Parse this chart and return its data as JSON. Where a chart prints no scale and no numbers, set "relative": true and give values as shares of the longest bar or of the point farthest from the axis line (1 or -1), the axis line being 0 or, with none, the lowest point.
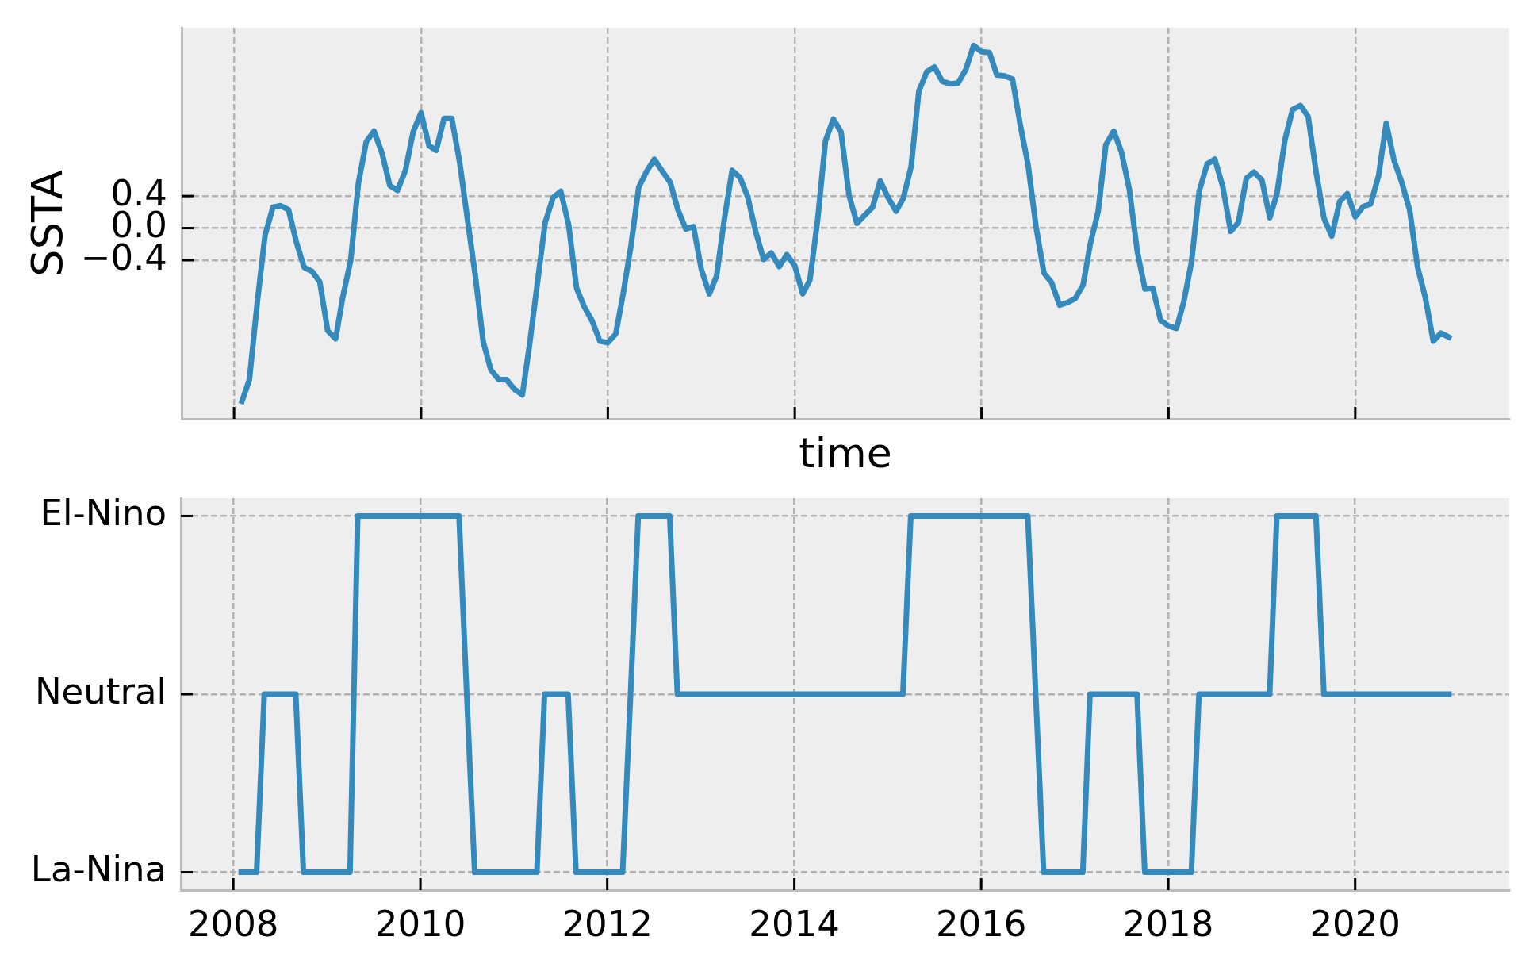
{
  "chart_data": [
    {
      "type": "line",
      "xlabel": "time",
      "ylabel": "SSTA",
      "color": "#348abd",
      "grid": true,
      "tick_labels": "y",
      "xlim": [
        "2007-06-10",
        "2021-08-25"
      ],
      "xticks": [
        "2008",
        "2010",
        "2012",
        "2014",
        "2016",
        "2018",
        "2020"
      ],
      "ylim": [
        -2.38,
        2.5
      ],
      "yticks": [
        0.4,
        {
          "value": 0,
          "label": "0.0"
        },
        {
          "value": -0.4,
          "label": "−0.4"
        }
      ],
      "x": [
        "2008-02",
        "2008-03",
        "2008-04",
        "2008-05",
        "2008-06",
        "2008-07",
        "2008-08",
        "2008-09",
        "2008-10",
        "2008-11",
        "2008-12",
        "2009-01",
        "2009-02",
        "2009-03",
        "2009-04",
        "2009-05",
        "2009-06",
        "2009-07",
        "2009-08",
        "2009-09",
        "2009-10",
        "2009-11",
        "2009-12",
        "2010-01",
        "2010-02",
        "2010-03",
        "2010-04",
        "2010-05",
        "2010-06",
        "2010-07",
        "2010-08",
        "2010-09",
        "2010-10",
        "2010-11",
        "2010-12",
        "2011-01",
        "2011-02",
        "2011-03",
        "2011-04",
        "2011-05",
        "2011-06",
        "2011-07",
        "2011-08",
        "2011-09",
        "2011-10",
        "2011-11",
        "2011-12",
        "2012-01",
        "2012-02",
        "2012-03",
        "2012-04",
        "2012-05",
        "2012-06",
        "2012-07",
        "2012-08",
        "2012-09",
        "2012-10",
        "2012-11",
        "2012-12",
        "2013-01",
        "2013-02",
        "2013-03",
        "2013-04",
        "2013-05",
        "2013-06",
        "2013-07",
        "2013-08",
        "2013-09",
        "2013-10",
        "2013-11",
        "2013-12",
        "2014-01",
        "2014-02",
        "2014-03",
        "2014-04",
        "2014-05",
        "2014-06",
        "2014-07",
        "2014-08",
        "2014-09",
        "2014-10",
        "2014-11",
        "2014-12",
        "2015-01",
        "2015-02",
        "2015-03",
        "2015-04",
        "2015-05",
        "2015-06",
        "2015-07",
        "2015-08",
        "2015-09",
        "2015-10",
        "2015-11",
        "2015-12",
        "2016-01",
        "2016-02",
        "2016-03",
        "2016-04",
        "2016-05",
        "2016-06",
        "2016-07",
        "2016-08",
        "2016-09",
        "2016-10",
        "2016-11",
        "2016-12",
        "2017-01",
        "2017-02",
        "2017-03",
        "2017-04",
        "2017-05",
        "2017-06",
        "2017-07",
        "2017-08",
        "2017-09",
        "2017-10",
        "2017-11",
        "2017-12",
        "2018-01",
        "2018-02",
        "2018-03",
        "2018-04",
        "2018-05",
        "2018-06",
        "2018-07",
        "2018-08",
        "2018-09",
        "2018-10",
        "2018-11",
        "2018-12",
        "2019-01",
        "2019-02",
        "2019-03",
        "2019-04",
        "2019-05",
        "2019-06",
        "2019-07",
        "2019-08",
        "2019-09",
        "2019-10",
        "2019-11",
        "2019-12",
        "2020-01",
        "2020-02",
        "2020-03",
        "2020-04",
        "2020-05",
        "2020-06",
        "2020-07",
        "2020-08",
        "2020-09",
        "2020-10",
        "2020-11",
        "2020-12",
        "2021-01"
      ],
      "values": [
        -2.16,
        -1.89,
        -0.92,
        -0.09,
        0.26,
        0.28,
        0.23,
        -0.18,
        -0.49,
        -0.54,
        -0.67,
        -1.28,
        -1.38,
        -0.86,
        -0.4,
        0.56,
        1.08,
        1.21,
        0.94,
        0.53,
        0.47,
        0.72,
        1.2,
        1.44,
        1.03,
        0.97,
        1.37,
        1.37,
        0.82,
        0.12,
        -0.59,
        -1.42,
        -1.77,
        -1.89,
        -1.89,
        -2.01,
        -2.08,
        -1.46,
        -0.68,
        0.07,
        0.38,
        0.46,
        0.04,
        -0.75,
        -0.98,
        -1.16,
        -1.41,
        -1.43,
        -1.32,
        -0.82,
        -0.21,
        0.51,
        0.71,
        0.86,
        0.71,
        0.57,
        0.23,
        -0.01,
        0.02,
        -0.52,
        -0.82,
        -0.6,
        0.12,
        0.72,
        0.63,
        0.39,
        -0.04,
        -0.39,
        -0.31,
        -0.48,
        -0.33,
        -0.47,
        -0.82,
        -0.65,
        0.12,
        1.09,
        1.36,
        1.2,
        0.41,
        0.06,
        0.16,
        0.26,
        0.59,
        0.38,
        0.21,
        0.37,
        0.77,
        1.71,
        1.95,
        2.01,
        1.83,
        1.8,
        1.81,
        1.98,
        2.28,
        2.2,
        2.19,
        1.91,
        1.9,
        1.86,
        1.28,
        0.79,
        0.02,
        -0.56,
        -0.68,
        -0.96,
        -0.93,
        -0.88,
        -0.71,
        -0.2,
        0.21,
        1.04,
        1.21,
        0.95,
        0.48,
        -0.29,
        -0.76,
        -0.75,
        -1.15,
        -1.22,
        -1.25,
        -0.93,
        -0.42,
        0.46,
        0.8,
        0.86,
        0.52,
        -0.04,
        0.07,
        0.62,
        0.7,
        0.6,
        0.13,
        0.43,
        1.1,
        1.48,
        1.53,
        1.39,
        0.7,
        0.12,
        -0.1,
        0.33,
        0.43,
        0.14,
        0.27,
        0.3,
        0.65,
        1.31,
        0.84,
        0.57,
        0.22,
        -0.49,
        -0.87,
        -1.41,
        -1.31,
        -1.36
      ]
    },
    {
      "type": "line",
      "color": "#348abd",
      "grid": true,
      "relative": true,
      "xlim": [
        "2007-06-10",
        "2021-08-25"
      ],
      "xticks": [
        "2008",
        "2010",
        "2012",
        "2014",
        "2016",
        "2018",
        "2020"
      ],
      "y_categories": [
        "El-Nino",
        "Neutral",
        "La-Nina"
      ],
      "x": [
        "2008-02",
        "2008-03",
        "2008-04",
        "2008-05",
        "2008-06",
        "2008-07",
        "2008-08",
        "2008-09",
        "2008-10",
        "2008-11",
        "2008-12",
        "2009-01",
        "2009-02",
        "2009-03",
        "2009-04",
        "2009-05",
        "2009-06",
        "2009-07",
        "2009-08",
        "2009-09",
        "2009-10",
        "2009-11",
        "2009-12",
        "2010-01",
        "2010-02",
        "2010-03",
        "2010-04",
        "2010-05",
        "2010-06",
        "2010-07",
        "2010-08",
        "2010-09",
        "2010-10",
        "2010-11",
        "2010-12",
        "2011-01",
        "2011-02",
        "2011-03",
        "2011-04",
        "2011-05",
        "2011-06",
        "2011-07",
        "2011-08",
        "2011-09",
        "2011-10",
        "2011-11",
        "2011-12",
        "2012-01",
        "2012-02",
        "2012-03",
        "2012-04",
        "2012-05",
        "2012-06",
        "2012-07",
        "2012-08",
        "2012-09",
        "2012-10",
        "2012-11",
        "2012-12",
        "2013-01",
        "2013-02",
        "2013-03",
        "2013-04",
        "2013-05",
        "2013-06",
        "2013-07",
        "2013-08",
        "2013-09",
        "2013-10",
        "2013-11",
        "2013-12",
        "2014-01",
        "2014-02",
        "2014-03",
        "2014-04",
        "2014-05",
        "2014-06",
        "2014-07",
        "2014-08",
        "2014-09",
        "2014-10",
        "2014-11",
        "2014-12",
        "2015-01",
        "2015-02",
        "2015-03",
        "2015-04",
        "2015-05",
        "2015-06",
        "2015-07",
        "2015-08",
        "2015-09",
        "2015-10",
        "2015-11",
        "2015-12",
        "2016-01",
        "2016-02",
        "2016-03",
        "2016-04",
        "2016-05",
        "2016-06",
        "2016-07",
        "2016-08",
        "2016-09",
        "2016-10",
        "2016-11",
        "2016-12",
        "2017-01",
        "2017-02",
        "2017-03",
        "2017-04",
        "2017-05",
        "2017-06",
        "2017-07",
        "2017-08",
        "2017-09",
        "2017-10",
        "2017-11",
        "2017-12",
        "2018-01",
        "2018-02",
        "2018-03",
        "2018-04",
        "2018-05",
        "2018-06",
        "2018-07",
        "2018-08",
        "2018-09",
        "2018-10",
        "2018-11",
        "2018-12",
        "2019-01",
        "2019-02",
        "2019-03",
        "2019-04",
        "2019-05",
        "2019-06",
        "2019-07",
        "2019-08",
        "2019-09",
        "2019-10",
        "2019-11",
        "2019-12",
        "2020-01",
        "2020-02",
        "2020-03",
        "2020-04",
        "2020-05",
        "2020-06",
        "2020-07",
        "2020-08",
        "2020-09",
        "2020-10",
        "2020-11",
        "2020-12",
        "2021-01"
      ],
      "values": [
        0,
        0,
        0,
        0.5,
        0.5,
        0.5,
        0.5,
        0.5,
        0,
        0,
        0,
        0,
        0,
        0,
        0,
        1,
        1,
        1,
        1,
        1,
        1,
        1,
        1,
        1,
        1,
        1,
        1,
        1,
        1,
        0.5,
        0,
        0,
        0,
        0,
        0,
        0,
        0,
        0,
        0,
        0.5,
        0.5,
        0.5,
        0.5,
        0,
        0,
        0,
        0,
        0,
        0,
        0,
        0.5,
        1,
        1,
        1,
        1,
        1,
        0.5,
        0.5,
        0.5,
        0.5,
        0.5,
        0.5,
        0.5,
        0.5,
        0.5,
        0.5,
        0.5,
        0.5,
        0.5,
        0.5,
        0.5,
        0.5,
        0.5,
        0.5,
        0.5,
        0.5,
        0.5,
        0.5,
        0.5,
        0.5,
        0.5,
        0.5,
        0.5,
        0.5,
        0.5,
        0.5,
        1,
        1,
        1,
        1,
        1,
        1,
        1,
        1,
        1,
        1,
        1,
        1,
        1,
        1,
        1,
        1,
        0.5,
        0,
        0,
        0,
        0,
        0,
        0,
        0.5,
        0.5,
        0.5,
        0.5,
        0.5,
        0.5,
        0.5,
        0,
        0,
        0,
        0,
        0,
        0,
        0,
        0.5,
        0.5,
        0.5,
        0.5,
        0.5,
        0.5,
        0.5,
        0.5,
        0.5,
        0.5,
        1,
        1,
        1,
        1,
        1,
        1,
        0.5,
        0.5,
        0.5,
        0.5,
        0.5,
        0.5,
        0.5,
        0.5,
        0.5,
        0.5,
        0.5,
        0.5,
        0.5,
        0.5,
        0.5,
        0.5,
        0.5
      ]
    }
  ]
}
